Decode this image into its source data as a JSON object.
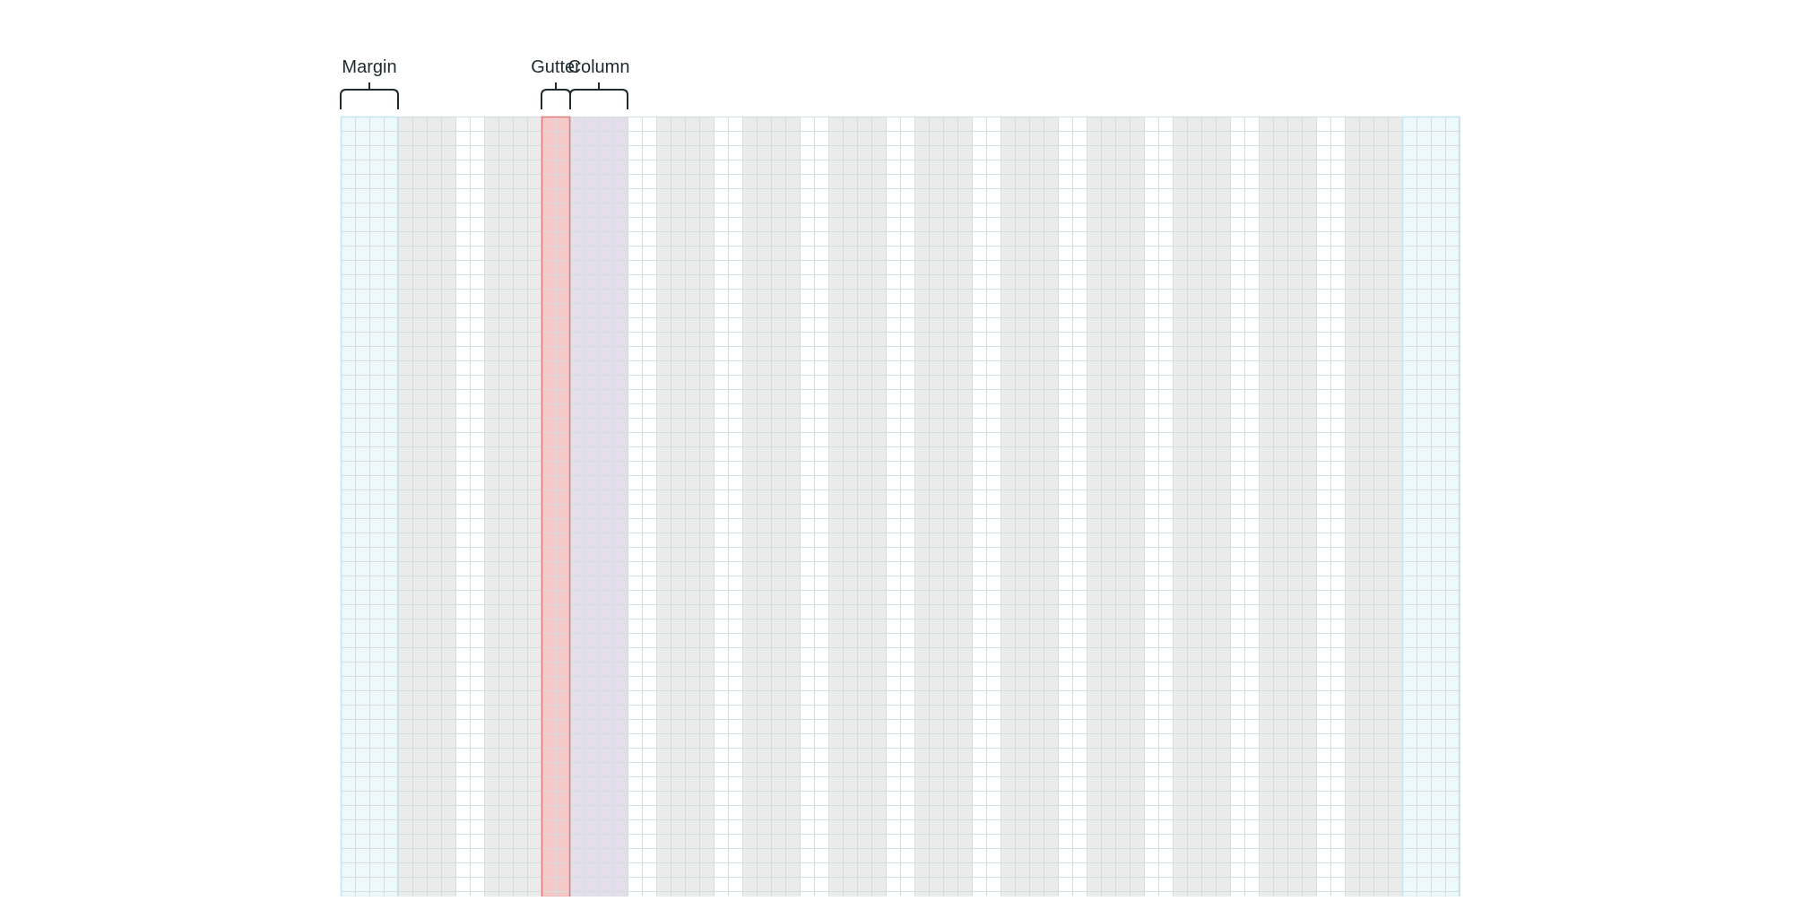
{
  "diagram": {
    "labels": {
      "margin": "Margin",
      "gutter": "Gutter",
      "column": "Column"
    },
    "layout_grid": {
      "columns": 12,
      "highlighted_column": 3,
      "highlighted_gutter": 2
    },
    "colors": {
      "margin_fill": "#edf9fc",
      "margin_line": "#c4e6f3",
      "column_fill": "#ebebeb",
      "gutter_fill": "#ffffff",
      "gutter_highlight_fill": "#f6c9c9",
      "gutter_highlight_line": "#e07a7a",
      "column_highlight_fill": "#e3dee9",
      "grid_line": "#d6dde0",
      "bracket": "#1f2a2e",
      "label_text": "#1f2a2e"
    }
  }
}
